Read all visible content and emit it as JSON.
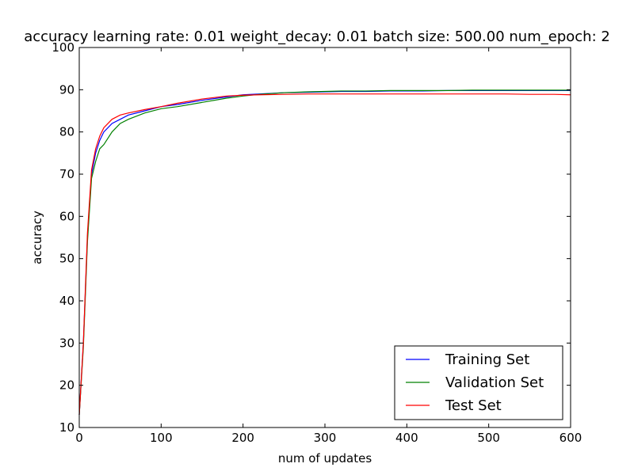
{
  "chart_data": {
    "type": "line",
    "title": "accuracy learning rate: 0.01 weight_decay: 0.01 batch size: 500.00 num_epoch: 2",
    "xlabel": "num of updates",
    "ylabel": "accuracy",
    "xlim": [
      0,
      600
    ],
    "ylim": [
      10,
      100
    ],
    "x_ticks": [
      0,
      100,
      200,
      300,
      400,
      500,
      600
    ],
    "y_ticks": [
      10,
      20,
      30,
      40,
      50,
      60,
      70,
      80,
      90,
      100
    ],
    "grid": false,
    "legend": "lower-right",
    "series": [
      {
        "name": "Training Set",
        "color": "#0000ff",
        "x": [
          0,
          5,
          10,
          15,
          20,
          25,
          30,
          40,
          50,
          60,
          80,
          100,
          120,
          150,
          180,
          200,
          220,
          250,
          280,
          300,
          320,
          350,
          380,
          400,
          420,
          450,
          480,
          500,
          520,
          550,
          580,
          600
        ],
        "y": [
          13,
          30,
          55,
          70,
          75,
          78,
          80,
          82,
          83,
          84,
          85,
          86,
          86.5,
          87.5,
          88.3,
          88.8,
          89,
          89.3,
          89.4,
          89.5,
          89.6,
          89.6,
          89.7,
          89.7,
          89.7,
          89.8,
          89.8,
          89.8,
          89.8,
          89.8,
          89.8,
          89.8
        ]
      },
      {
        "name": "Validation Set",
        "color": "#008000",
        "x": [
          0,
          5,
          10,
          15,
          20,
          25,
          30,
          40,
          50,
          60,
          80,
          100,
          120,
          150,
          180,
          200,
          220,
          250,
          280,
          300,
          320,
          350,
          380,
          400,
          420,
          450,
          480,
          500,
          520,
          550,
          580,
          600
        ],
        "y": [
          13,
          29,
          54,
          69,
          73,
          76,
          77,
          80,
          82,
          83,
          84.5,
          85.5,
          86,
          87,
          88,
          88.5,
          88.9,
          89.3,
          89.5,
          89.6,
          89.7,
          89.7,
          89.8,
          89.8,
          89.8,
          89.8,
          89.9,
          89.9,
          89.9,
          89.9,
          89.9,
          89.9
        ]
      },
      {
        "name": "Test Set",
        "color": "#ff0000",
        "x": [
          0,
          5,
          10,
          15,
          20,
          25,
          30,
          40,
          50,
          60,
          80,
          100,
          120,
          150,
          180,
          200,
          220,
          250,
          280,
          300,
          320,
          350,
          380,
          400,
          420,
          450,
          480,
          500,
          520,
          550,
          580,
          600
        ],
        "y": [
          13,
          30,
          56,
          71,
          76,
          79,
          81,
          83,
          84,
          84.5,
          85.3,
          86,
          86.8,
          87.8,
          88.5,
          88.7,
          88.8,
          88.9,
          89,
          89,
          89,
          89,
          89,
          89,
          89,
          89,
          89,
          89,
          89,
          88.9,
          88.9,
          88.8
        ]
      }
    ]
  }
}
